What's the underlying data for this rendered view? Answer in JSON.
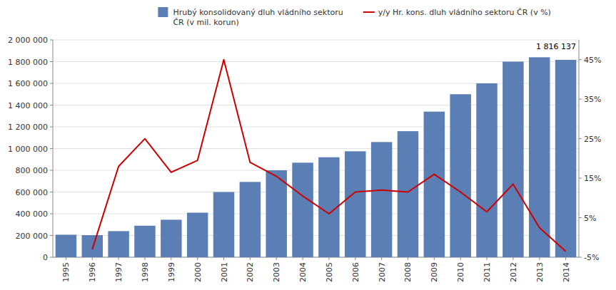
{
  "chart_data": {
    "type": "bar",
    "categories": [
      "1995",
      "1996",
      "1997",
      "1998",
      "1999",
      "2000",
      "2001",
      "2002",
      "2003",
      "2004",
      "2005",
      "2006",
      "2007",
      "2008",
      "2009",
      "2010",
      "2011",
      "2012",
      "2013",
      "2014"
    ],
    "series": [
      {
        "name": "Hrubý konsolidovaný dluh vládního sektoru\nČR (v mil. korun)",
        "type": "bar",
        "color": "#5B7FB5",
        "values": [
          207000,
          203000,
          240000,
          290000,
          345000,
          410000,
          600000,
          693000,
          800000,
          870000,
          920000,
          975000,
          1060000,
          1160000,
          1340000,
          1500000,
          1600000,
          1800000,
          1840000,
          1816137
        ]
      },
      {
        "name": "y/y Hr. kons. dluh vládního sektoru ČR (v %)",
        "type": "line",
        "color": "#CC0000",
        "axis": "y2",
        "values": [
          null,
          -3.0,
          18.0,
          25.0,
          16.5,
          19.5,
          45.0,
          19.0,
          15.5,
          10.5,
          6.0,
          11.5,
          12.0,
          11.5,
          16.0,
          11.5,
          6.5,
          13.5,
          2.5,
          -3.5
        ]
      }
    ],
    "ylim": [
      0,
      2000000
    ],
    "yticks": [
      0,
      {
        "value": 200000,
        "label": "200 000"
      },
      {
        "value": 400000,
        "label": "400 000"
      },
      {
        "value": 600000,
        "label": "600 000"
      },
      {
        "value": 800000,
        "label": "800 000"
      },
      {
        "value": 1000000,
        "label": "1 000 000"
      },
      {
        "value": 1200000,
        "label": "1 200 000"
      },
      {
        "value": 1400000,
        "label": "1 400 000"
      },
      {
        "value": 1600000,
        "label": "1 600 000"
      },
      {
        "value": 1800000,
        "label": "1 800 000"
      },
      {
        "value": 2000000,
        "label": "2 000 000"
      }
    ],
    "y2lim": [
      -5,
      50
    ],
    "y2ticks": [
      {
        "value": -5,
        "label": "-5%"
      },
      {
        "value": 5,
        "label": "5%"
      },
      {
        "value": 15,
        "label": "15%"
      },
      {
        "value": 25,
        "label": "25%"
      },
      {
        "value": 35,
        "label": "35%"
      },
      {
        "value": 45,
        "label": "45%"
      }
    ],
    "annotation": "1 816 137",
    "grid": true,
    "legend": "top"
  }
}
